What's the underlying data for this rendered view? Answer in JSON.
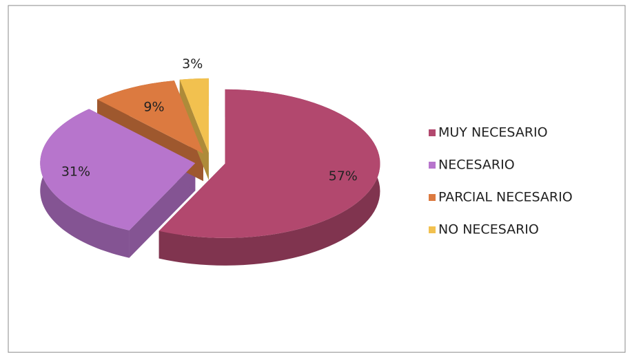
{
  "chart_data": {
    "type": "pie",
    "categories": [
      "MUY NECESARIO",
      "NECESARIO",
      "PARCIAL NECESARIO",
      "NO NECESARIO"
    ],
    "values": [
      57,
      31,
      9,
      3
    ],
    "value_labels": [
      "57%",
      "31%",
      "9%",
      "3%"
    ],
    "colors": [
      "#b2486e",
      "#b775cc",
      "#dc7a40",
      "#f2c14f"
    ],
    "legend": "right"
  }
}
